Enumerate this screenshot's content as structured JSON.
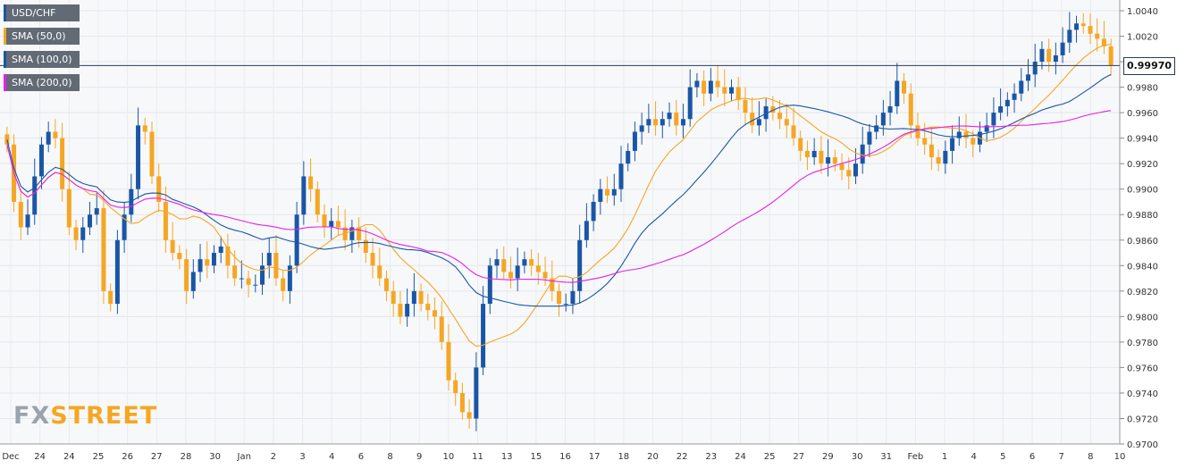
{
  "chart_data": {
    "type": "candlestick",
    "title": "",
    "xlabel": "",
    "ylabel": "",
    "ylim": [
      0.97,
      1.004
    ],
    "y_ticks": [
      "1.0040",
      "1.0020",
      "1.0000",
      "0.9980",
      "0.9960",
      "0.9940",
      "0.9920",
      "0.9900",
      "0.9880",
      "0.9860",
      "0.9840",
      "0.9820",
      "0.9800",
      "0.9780",
      "0.9760",
      "0.9740",
      "0.9720",
      "0.9700"
    ],
    "x_ticks": [
      "Dec",
      "24",
      "24",
      "25",
      "26",
      "27",
      "28",
      "30",
      "Jan",
      "2",
      "3",
      "4",
      "6",
      "8",
      "9",
      "10",
      "11",
      "13",
      "15",
      "16",
      "17",
      "18",
      "20",
      "22",
      "23",
      "24",
      "25",
      "27",
      "29",
      "30",
      "31",
      "Feb",
      "1",
      "4",
      "5",
      "6",
      "7",
      "8",
      "10"
    ],
    "last_price": "0.99970",
    "grid": true,
    "legend_position": "top-left",
    "colors": {
      "up": "#1a56a6",
      "down": "#f5a623",
      "sma50": "#f5a623",
      "sma100": "#1a56a6",
      "sma200": "#e81ee8",
      "last_line": "#2b3a57"
    },
    "legend": [
      {
        "label": "USD/CHF",
        "color": "#1a56a6"
      },
      {
        "label": "SMA (50,0)",
        "color": "#f5a623"
      },
      {
        "label": "SMA (100,0)",
        "color": "#1a56a6"
      },
      {
        "label": "SMA (200,0)",
        "color": "#e81ee8"
      }
    ],
    "watermark": [
      "FX",
      "STREET"
    ],
    "close": [
      0.9935,
      0.989,
      0.987,
      0.988,
      0.991,
      0.9935,
      0.9945,
      0.994,
      0.99,
      0.987,
      0.986,
      0.987,
      0.988,
      0.9885,
      0.982,
      0.981,
      0.986,
      0.988,
      0.99,
      0.995,
      0.9945,
      0.991,
      0.989,
      0.986,
      0.985,
      0.9845,
      0.982,
      0.9835,
      0.9845,
      0.984,
      0.985,
      0.9855,
      0.984,
      0.983,
      0.983,
      0.9825,
      0.9825,
      0.984,
      0.985,
      0.983,
      0.982,
      0.984,
      0.988,
      0.991,
      0.99,
      0.988,
      0.987,
      0.9875,
      0.987,
      0.986,
      0.987,
      0.986,
      0.985,
      0.984,
      0.983,
      0.982,
      0.981,
      0.98,
      0.981,
      0.982,
      0.981,
      0.9805,
      0.98,
      0.978,
      0.975,
      0.974,
      0.9725,
      0.972,
      0.976,
      0.981,
      0.984,
      0.9845,
      0.9835,
      0.983,
      0.984,
      0.9845,
      0.984,
      0.9835,
      0.983,
      0.982,
      0.981,
      0.981,
      0.982,
      0.986,
      0.9875,
      0.989,
      0.99,
      0.9895,
      0.99,
      0.992,
      0.993,
      0.9945,
      0.995,
      0.9955,
      0.995,
      0.9955,
      0.996,
      0.995,
      0.9955,
      0.998,
      0.9985,
      0.9975,
      0.9985,
      0.998,
      0.9975,
      0.998,
      0.997,
      0.996,
      0.995,
      0.9955,
      0.9965,
      0.996,
      0.9955,
      0.995,
      0.994,
      0.993,
      0.9925,
      0.993,
      0.992,
      0.9925,
      0.992,
      0.9915,
      0.991,
      0.992,
      0.9935,
      0.9945,
      0.995,
      0.996,
      0.9965,
      0.9985,
      0.9975,
      0.995,
      0.994,
      0.9935,
      0.9925,
      0.992,
      0.993,
      0.994,
      0.9945,
      0.994,
      0.9935,
      0.9945,
      0.995,
      0.996,
      0.9965,
      0.997,
      0.9975,
      0.9985,
      0.999,
      1.0,
      1.001,
      1.0,
      1.0005,
      1.0015,
      1.0025,
      1.003,
      1.0028,
      1.0022,
      1.0018,
      1.0012,
      0.9997
    ]
  }
}
